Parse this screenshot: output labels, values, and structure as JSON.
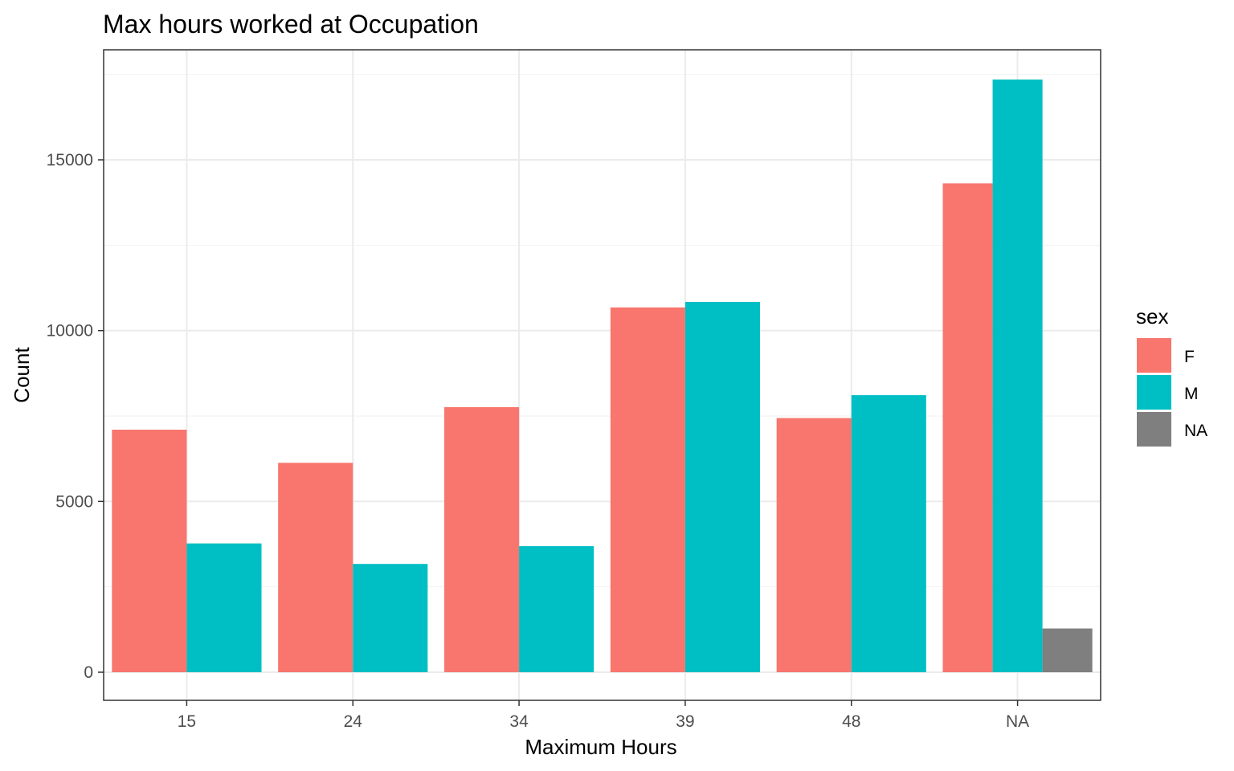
{
  "chart_data": {
    "type": "bar",
    "title": "Max hours worked at Occupation",
    "xlabel": "Maximum Hours",
    "ylabel": "Count",
    "categories": [
      "15",
      "24",
      "34",
      "39",
      "48",
      "NA"
    ],
    "ylim": [
      -850,
      17900
    ],
    "yticks": [
      0,
      5000,
      10000,
      15000
    ],
    "ytick_labels": [
      "0",
      "5000",
      "10000",
      "15000"
    ],
    "grid": true,
    "legend_position": "right",
    "legend_title": "sex",
    "series": [
      {
        "name": "F",
        "color": "#F8766D",
        "values": [
          7100,
          6130,
          7760,
          10680,
          7440,
          14310
        ]
      },
      {
        "name": "M",
        "color": "#00BFC4",
        "values": [
          3770,
          3170,
          3690,
          10840,
          8110,
          17350
        ]
      },
      {
        "name": "NA",
        "color": "#7F7F7F",
        "values": [
          null,
          null,
          null,
          null,
          null,
          1280
        ]
      }
    ]
  }
}
